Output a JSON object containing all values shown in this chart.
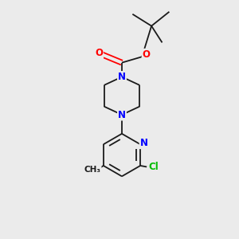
{
  "background_color": "#ebebeb",
  "bond_color": "#1a1a1a",
  "N_color": "#0000ff",
  "O_color": "#ff0000",
  "Cl_color": "#00bb00",
  "line_width": 1.3,
  "figsize": [
    3.0,
    3.0
  ],
  "dpi": 100,
  "xlim": [
    0,
    10
  ],
  "ylim": [
    0,
    10
  ]
}
